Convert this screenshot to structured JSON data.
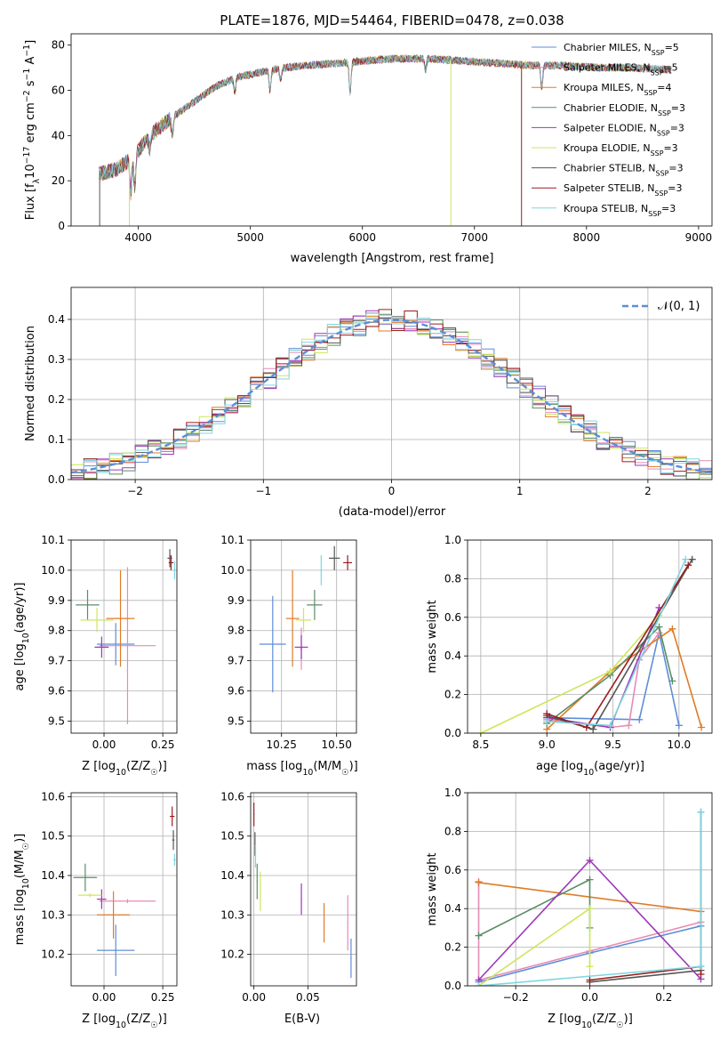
{
  "figure_title": "PLATE=1876, MJD=54464, FIBERID=0478, z=0.038",
  "colors": {
    "blue": "#5e8ed8",
    "pink": "#e58bb8",
    "orange": "#e07b25",
    "green": "#5b8d67",
    "purple": "#9b38b8",
    "lime": "#cde65c",
    "gray": "#555555",
    "darkred": "#9b1c1c",
    "cyan": "#7fd6e0",
    "gauss": "#5b8ed6",
    "grid": "#b0b0b0"
  },
  "chart_data": [
    {
      "type": "line",
      "title": "PLATE=1876, MJD=54464, FIBERID=0478, z=0.038",
      "xlabel": "wavelength [Angstrom, rest frame]",
      "ylabel_parts": [
        "Flux [f",
        "λ",
        "10",
        "−17",
        " erg cm",
        "−2",
        " s",
        "−1",
        " A",
        "−1",
        "]"
      ],
      "xlim": [
        3400,
        9120
      ],
      "ylim": [
        0,
        85
      ],
      "xticks": [
        4000,
        5000,
        6000,
        7000,
        8000,
        9000
      ],
      "yticks": [
        0,
        20,
        40,
        60,
        80
      ],
      "grid": false,
      "legend_position": "right",
      "x_range": [
        3650,
        8760
      ],
      "continuum_anchors": {
        "x": [
          3650,
          3800,
          3950,
          4100,
          4300,
          4500,
          4700,
          4900,
          5100,
          5300,
          5500,
          5800,
          6000,
          6300,
          6600,
          6900,
          7200,
          7500,
          7800,
          8100,
          8400,
          8760
        ],
        "y": [
          23,
          25,
          30,
          40,
          48,
          55,
          62,
          66,
          68,
          70,
          71,
          72,
          73,
          74,
          74,
          73,
          72,
          71,
          71,
          70,
          70,
          69
        ]
      },
      "absorption_features": [
        [
          3933,
          15
        ],
        [
          3968,
          14
        ],
        [
          4101,
          6
        ],
        [
          4304,
          8
        ],
        [
          4861,
          6
        ],
        [
          5175,
          9
        ],
        [
          5270,
          5
        ],
        [
          5890,
          14
        ],
        [
          6563,
          5
        ],
        [
          7600,
          10
        ]
      ],
      "spike_dropouts": [
        [
          3655,
          0
        ],
        [
          3920,
          0
        ],
        [
          6790,
          0
        ],
        [
          7420,
          0
        ]
      ],
      "series": [
        {
          "name_parts": [
            "Chabrier MILES, N",
            "SSP",
            "=5"
          ],
          "color_key": "blue"
        },
        {
          "name_parts": [
            "Salpeter MILES, N",
            "SSP",
            "=5"
          ],
          "color_key": "pink"
        },
        {
          "name_parts": [
            "Kroupa MILES, N",
            "SSP",
            "=4"
          ],
          "color_key": "orange"
        },
        {
          "name_parts": [
            "Chabrier ELODIE, N",
            "SSP",
            "=3"
          ],
          "color_key": "green"
        },
        {
          "name_parts": [
            "Salpeter ELODIE, N",
            "SSP",
            "=3"
          ],
          "color_key": "purple"
        },
        {
          "name_parts": [
            "Kroupa ELODIE, N",
            "SSP",
            "=3"
          ],
          "color_key": "lime"
        },
        {
          "name_parts": [
            "Chabrier STELIB, N",
            "SSP",
            "=3"
          ],
          "color_key": "gray"
        },
        {
          "name_parts": [
            "Salpeter STELIB, N",
            "SSP",
            "=3"
          ],
          "color_key": "darkred"
        },
        {
          "name_parts": [
            "Kroupa STELIB, N",
            "SSP",
            "=3"
          ],
          "color_key": "cyan"
        }
      ]
    },
    {
      "type": "histogram",
      "xlabel": "(data-model)/error",
      "ylabel": "Normed distribution",
      "xlim": [
        -2.5,
        2.5
      ],
      "ylim": [
        0,
        0.48
      ],
      "xticks": [
        -2,
        -1,
        0,
        1,
        2
      ],
      "yticks": [
        0.0,
        0.1,
        0.2,
        0.3,
        0.4
      ],
      "grid": true,
      "legend_position": "top-right",
      "bin_width": 0.1,
      "model_curve": {
        "name": "𝒩(0, 1)",
        "mean": 0,
        "sigma": 1,
        "style": "dashed"
      },
      "series_color_keys": [
        "blue",
        "pink",
        "orange",
        "green",
        "purple",
        "lime",
        "gray",
        "darkred",
        "cyan"
      ]
    },
    {
      "type": "scatter",
      "subtype": "errorbar",
      "xlabel": "Z [log10(Z/Z☉)]",
      "xlabel_parts": [
        "Z [log",
        "10",
        "(Z/Z",
        "☉",
        ")]"
      ],
      "ylabel": "age [log10(age/yr)]",
      "ylabel_parts": [
        "age  [log",
        "10",
        "(age/yr)]"
      ],
      "xlim": [
        -0.14,
        0.31
      ],
      "ylim": [
        9.46,
        10.1
      ],
      "xticks": [
        0.0,
        0.25
      ],
      "yticks": [
        9.5,
        9.6,
        9.7,
        9.8,
        9.9,
        10.0,
        10.1
      ],
      "grid": true,
      "points": [
        {
          "color_key": "blue",
          "x": 0.05,
          "xerr": 0.08,
          "y": 9.755,
          "yerr": 0.07
        },
        {
          "color_key": "pink",
          "x": 0.1,
          "xerr": 0.12,
          "y": 9.75,
          "yerr": 0.26
        },
        {
          "color_key": "orange",
          "x": 0.07,
          "xerr": 0.06,
          "y": 9.84,
          "yerr": 0.16
        },
        {
          "color_key": "green",
          "x": -0.07,
          "xerr": 0.05,
          "y": 9.885,
          "yerr": 0.05
        },
        {
          "color_key": "purple",
          "x": -0.01,
          "xerr": 0.03,
          "y": 9.745,
          "yerr": 0.035
        },
        {
          "color_key": "lime",
          "x": -0.03,
          "xerr": 0.07,
          "y": 9.835,
          "yerr": 0.04
        },
        {
          "color_key": "gray",
          "x": 0.28,
          "xerr": 0.01,
          "y": 10.04,
          "yerr": 0.03
        },
        {
          "color_key": "darkred",
          "x": 0.285,
          "xerr": 0.01,
          "y": 10.025,
          "yerr": 0.025
        },
        {
          "color_key": "cyan",
          "x": 0.3,
          "xerr": 0.006,
          "y": 10.0,
          "yerr": 0.03
        }
      ]
    },
    {
      "type": "scatter",
      "subtype": "errorbar",
      "xlabel": "mass [log10(M/M☉)]",
      "xlabel_parts": [
        "mass [log",
        "10",
        "(M/M",
        "☉",
        ")]"
      ],
      "ylabel": "",
      "xlim": [
        10.11,
        10.59
      ],
      "ylim": [
        9.46,
        10.1
      ],
      "xticks": [
        10.25,
        10.5
      ],
      "yticks": [
        9.5,
        9.6,
        9.7,
        9.8,
        9.9,
        10.0,
        10.1
      ],
      "grid": true,
      "points": [
        {
          "color_key": "blue",
          "x": 10.21,
          "xerr": 0.06,
          "y": 9.755,
          "yerr": 0.16
        },
        {
          "color_key": "pink",
          "x": 10.34,
          "xerr": 0.005,
          "y": 9.74,
          "yerr": 0.07
        },
        {
          "color_key": "orange",
          "x": 10.3,
          "xerr": 0.03,
          "y": 9.84,
          "yerr": 0.16
        },
        {
          "color_key": "green",
          "x": 10.4,
          "xerr": 0.035,
          "y": 9.885,
          "yerr": 0.05
        },
        {
          "color_key": "purple",
          "x": 10.34,
          "xerr": 0.03,
          "y": 9.745,
          "yerr": 0.04
        },
        {
          "color_key": "lime",
          "x": 10.35,
          "xerr": 0.035,
          "y": 9.835,
          "yerr": 0.04
        },
        {
          "color_key": "gray",
          "x": 10.49,
          "xerr": 0.025,
          "y": 10.04,
          "yerr": 0.04
        },
        {
          "color_key": "darkred",
          "x": 10.55,
          "xerr": 0.02,
          "y": 10.025,
          "yerr": 0.025
        },
        {
          "color_key": "cyan",
          "x": 10.43,
          "xerr": 0.005,
          "y": 10.0,
          "yerr": 0.05
        }
      ]
    },
    {
      "type": "line",
      "subtype": "markers",
      "xlabel": "age [log10(age/yr)]",
      "xlabel_parts": [
        "age  [log",
        "10",
        "(age/yr)]"
      ],
      "ylabel": "mass weight",
      "xlim": [
        8.4,
        10.25
      ],
      "ylim": [
        0,
        1.0
      ],
      "xticks": [
        8.5,
        9.0,
        9.5,
        10.0
      ],
      "yticks": [
        0.0,
        0.2,
        0.4,
        0.6,
        0.8,
        1.0
      ],
      "grid": true,
      "series": [
        {
          "color_key": "blue",
          "x": [
            9.0,
            9.7,
            9.85,
            10.0
          ],
          "y": [
            0.08,
            0.07,
            0.52,
            0.04
          ]
        },
        {
          "color_key": "pink",
          "x": [
            9.0,
            9.48,
            9.62,
            9.7,
            9.85
          ],
          "y": [
            0.07,
            0.03,
            0.04,
            0.38,
            0.52
          ]
        },
        {
          "color_key": "orange",
          "x": [
            9.0,
            9.48,
            9.95,
            10.17
          ],
          "y": [
            0.02,
            0.32,
            0.54,
            0.03
          ]
        },
        {
          "color_key": "green",
          "x": [
            9.0,
            9.48,
            9.85,
            9.95
          ],
          "y": [
            0.05,
            0.3,
            0.55,
            0.27
          ]
        },
        {
          "color_key": "purple",
          "x": [
            9.0,
            9.48,
            9.85
          ],
          "y": [
            0.08,
            0.03,
            0.65
          ]
        },
        {
          "color_key": "lime",
          "x": [
            8.5,
            9.48,
            9.85
          ],
          "y": [
            0.0,
            0.32,
            0.61
          ]
        },
        {
          "color_key": "gray",
          "x": [
            9.0,
            9.35,
            10.1
          ],
          "y": [
            0.09,
            0.02,
            0.9
          ]
        },
        {
          "color_key": "darkred",
          "x": [
            9.0,
            9.3,
            10.07
          ],
          "y": [
            0.1,
            0.03,
            0.87
          ]
        },
        {
          "color_key": "cyan",
          "x": [
            9.0,
            9.48,
            10.05
          ],
          "y": [
            0.06,
            0.04,
            0.9
          ]
        }
      ]
    },
    {
      "type": "scatter",
      "subtype": "errorbar",
      "xlabel": "Z [log10(Z/Z☉)]",
      "xlabel_parts": [
        "Z [log",
        "10",
        "(Z/Z",
        "☉",
        ")]"
      ],
      "ylabel": "mass [log10(M/M☉)]",
      "ylabel_parts": [
        "mass [log",
        "10",
        "(M/M",
        "☉",
        ")]"
      ],
      "xlim": [
        -0.14,
        0.31
      ],
      "ylim": [
        10.12,
        10.61
      ],
      "xticks": [
        0.0,
        0.25
      ],
      "yticks": [
        10.2,
        10.3,
        10.4,
        10.5,
        10.6
      ],
      "grid": true,
      "points": [
        {
          "color_key": "blue",
          "x": 0.05,
          "xerr": 0.08,
          "y": 10.21,
          "yerr": 0.065
        },
        {
          "color_key": "pink",
          "x": 0.1,
          "xerr": 0.12,
          "y": 10.335,
          "yerr": 0.005
        },
        {
          "color_key": "orange",
          "x": 0.04,
          "xerr": 0.07,
          "y": 10.3,
          "yerr": 0.06
        },
        {
          "color_key": "green",
          "x": -0.08,
          "xerr": 0.05,
          "y": 10.395,
          "yerr": 0.035
        },
        {
          "color_key": "purple",
          "x": -0.01,
          "xerr": 0.02,
          "y": 10.34,
          "yerr": 0.025
        },
        {
          "color_key": "lime",
          "x": -0.06,
          "xerr": 0.05,
          "y": 10.35,
          "yerr": 0.005
        },
        {
          "color_key": "gray",
          "x": 0.295,
          "xerr": 0.005,
          "y": 10.49,
          "yerr": 0.025
        },
        {
          "color_key": "darkred",
          "x": 0.29,
          "xerr": 0.01,
          "y": 10.55,
          "yerr": 0.025
        },
        {
          "color_key": "cyan",
          "x": 0.3,
          "xerr": 0.005,
          "y": 10.44,
          "yerr": 0.015
        }
      ]
    },
    {
      "type": "scatter",
      "subtype": "errorbar",
      "xlabel": "E(B-V)",
      "ylabel": "",
      "xlim": [
        -0.003,
        0.095
      ],
      "ylim": [
        10.12,
        10.61
      ],
      "xticks": [
        0.0,
        0.05
      ],
      "yticks": [
        10.2,
        10.3,
        10.4,
        10.5,
        10.6
      ],
      "grid": true,
      "points": [
        {
          "color_key": "blue",
          "x": 0.09,
          "xerr": 0.0005,
          "y": 10.19,
          "yerr": 0.05
        },
        {
          "color_key": "pink",
          "x": 0.087,
          "xerr": 0.0005,
          "y": 10.28,
          "yerr": 0.07
        },
        {
          "color_key": "orange",
          "x": 0.065,
          "xerr": 0.0005,
          "y": 10.28,
          "yerr": 0.05
        },
        {
          "color_key": "green",
          "x": 0.003,
          "xerr": 0.0005,
          "y": 10.385,
          "yerr": 0.045
        },
        {
          "color_key": "purple",
          "x": 0.044,
          "xerr": 0.0005,
          "y": 10.34,
          "yerr": 0.04
        },
        {
          "color_key": "lime",
          "x": 0.006,
          "xerr": 0.0005,
          "y": 10.36,
          "yerr": 0.05
        },
        {
          "color_key": "gray",
          "x": 0.001,
          "xerr": 0.0005,
          "y": 10.48,
          "yerr": 0.03
        },
        {
          "color_key": "darkred",
          "x": 0.0,
          "xerr": 0.0005,
          "y": 10.555,
          "yerr": 0.03
        },
        {
          "color_key": "cyan",
          "x": 0.0015,
          "xerr": 0.0005,
          "y": 10.45,
          "yerr": 0.03
        }
      ]
    },
    {
      "type": "line",
      "subtype": "markers",
      "xlabel": "Z [log10(Z/Z☉)]",
      "xlabel_parts": [
        "Z [log",
        "10",
        "(Z/Z",
        "☉",
        ")]"
      ],
      "ylabel": "mass weight",
      "xlim": [
        -0.33,
        0.33
      ],
      "ylim": [
        0,
        1.0
      ],
      "xticks": [
        -0.2,
        0.0,
        0.2
      ],
      "yticks": [
        0.0,
        0.2,
        0.4,
        0.6,
        0.8,
        1.0
      ],
      "grid": true,
      "series": [
        {
          "color_key": "blue",
          "x": [
            -0.3,
            0.0,
            0.3
          ],
          "y": [
            0.02,
            0.17,
            0.31
          ]
        },
        {
          "color_key": "pink",
          "x": [
            -0.3,
            -0.3,
            0.0,
            0.3
          ],
          "y": [
            0.54,
            0.03,
            0.18,
            0.33
          ]
        },
        {
          "color_key": "orange",
          "x": [
            -0.3,
            0.3
          ],
          "y": [
            0.535,
            0.385
          ]
        },
        {
          "color_key": "green",
          "x": [
            -0.3,
            0.0,
            0.0
          ],
          "y": [
            0.26,
            0.55,
            0.3
          ]
        },
        {
          "color_key": "purple",
          "x": [
            -0.3,
            0.0,
            0.3
          ],
          "y": [
            0.03,
            0.65,
            0.035
          ]
        },
        {
          "color_key": "lime",
          "x": [
            -0.3,
            0.0,
            0.0
          ],
          "y": [
            0.0,
            0.4,
            0.1
          ]
        },
        {
          "color_key": "gray",
          "x": [
            0.0,
            0.3,
            0.3
          ],
          "y": [
            0.02,
            0.08,
            0.9
          ]
        },
        {
          "color_key": "darkred",
          "x": [
            0.0,
            0.3,
            0.3
          ],
          "y": [
            0.03,
            0.1,
            0.06
          ]
        },
        {
          "color_key": "cyan",
          "x": [
            -0.3,
            0.3,
            0.3
          ],
          "y": [
            0.0,
            0.1,
            0.9
          ]
        }
      ]
    }
  ]
}
